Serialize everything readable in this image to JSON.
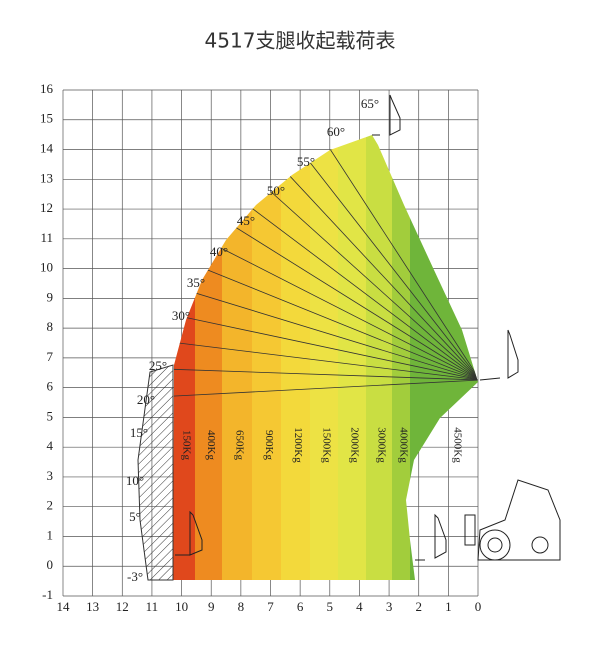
{
  "chart_data": {
    "type": "load-chart",
    "title": "4517支腿收起载荷表",
    "xlim": [
      14,
      0
    ],
    "ylim": [
      -1,
      16
    ],
    "xticks": [
      14,
      13,
      12,
      11,
      10,
      9,
      8,
      7,
      6,
      5,
      4,
      3,
      2,
      1,
      0
    ],
    "yticks": [
      -1,
      0,
      1,
      2,
      3,
      4,
      5,
      6,
      7,
      8,
      9,
      10,
      11,
      12,
      13,
      14,
      15,
      16
    ],
    "grid": true,
    "angles": [
      "65°",
      "60°",
      "55°",
      "50°",
      "45°",
      "40°",
      "35°",
      "30°",
      "25°",
      "20°",
      "15°",
      "10°",
      "5°",
      "-3°"
    ],
    "zones": [
      {
        "label": "150Kg",
        "color": "#e0481c"
      },
      {
        "label": "400Kg",
        "color": "#ee8b20"
      },
      {
        "label": "650Kg",
        "color": "#f3b52b"
      },
      {
        "label": "900Kg",
        "color": "#f5c833"
      },
      {
        "label": "1200Kg",
        "color": "#f3d93b"
      },
      {
        "label": "1500Kg",
        "color": "#ede244"
      },
      {
        "label": "2000Kg",
        "color": "#e1e546"
      },
      {
        "label": "3000Kg",
        "color": "#c9de42"
      },
      {
        "label": "4000Kg",
        "color": "#a2cd3c"
      },
      {
        "label": "4500Kg",
        "color": "#6fb53a"
      }
    ]
  }
}
